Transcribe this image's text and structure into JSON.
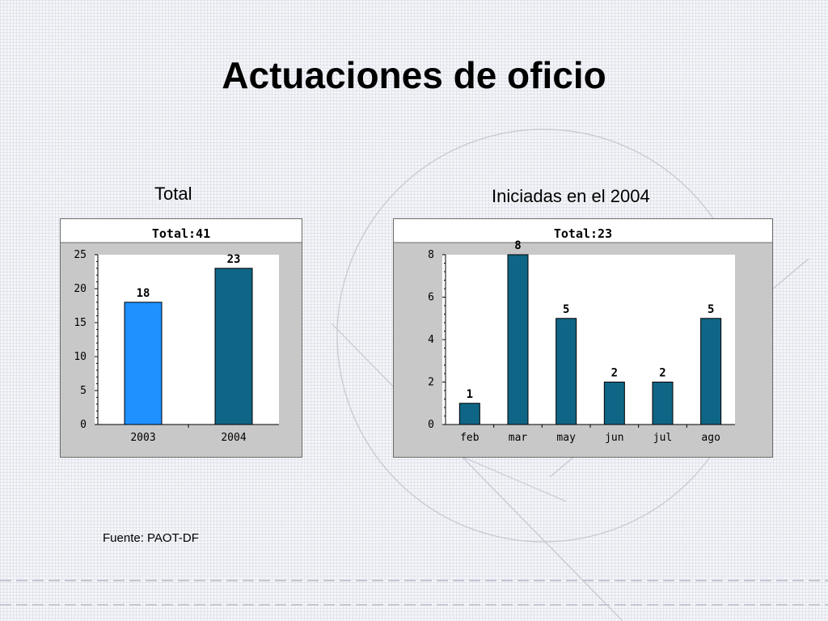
{
  "slide": {
    "title": "Actuaciones de oficio",
    "left_caption": "Total",
    "right_caption": "Iniciadas en el 2004",
    "source": "Fuente: PAOT-DF"
  },
  "colors": {
    "bar_dark": "#0f6585",
    "bar_light": "#1e90ff",
    "panel_bg": "#c8c8c8",
    "plot_bg": "#ffffff"
  },
  "chart_data": [
    {
      "type": "bar",
      "header": "Total:41",
      "categories": [
        "2003",
        "2004"
      ],
      "values": [
        18,
        23
      ],
      "bar_colors": [
        "#1e90ff",
        "#0f6585"
      ],
      "ylim": [
        0,
        25
      ],
      "yticks": [
        0,
        5,
        10,
        15,
        20,
        25
      ],
      "data_labels": true,
      "grid": false
    },
    {
      "type": "bar",
      "header": "Total:23",
      "categories": [
        "feb",
        "mar",
        "may",
        "jun",
        "jul",
        "ago"
      ],
      "values": [
        1,
        8,
        5,
        2,
        2,
        5
      ],
      "bar_colors": [
        "#0f6585",
        "#0f6585",
        "#0f6585",
        "#0f6585",
        "#0f6585",
        "#0f6585"
      ],
      "ylim": [
        0,
        8
      ],
      "yticks": [
        0,
        2,
        4,
        6,
        8
      ],
      "data_labels": true,
      "grid": false
    }
  ]
}
